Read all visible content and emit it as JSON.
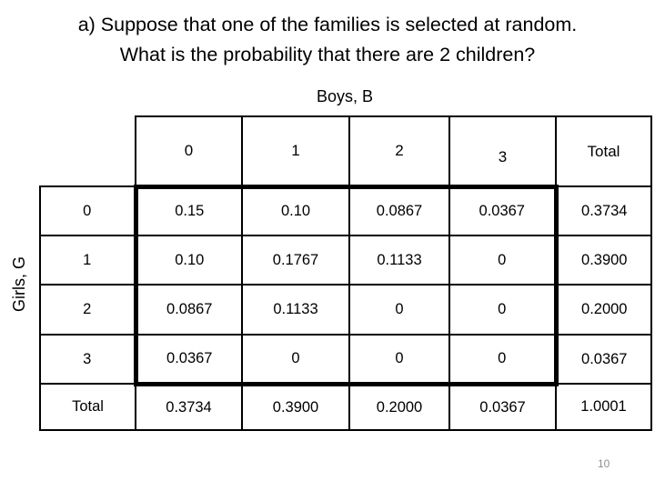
{
  "slide": {
    "title_line1": "a) Suppose that one of the families is selected at random.",
    "title_line2": "What is the probability that there are 2 children?",
    "page_number": "10"
  },
  "table": {
    "col_axis_label": "Boys, B",
    "row_axis_label": "Girls, G",
    "col_headers": [
      "0",
      "1",
      "2",
      "3",
      "Total"
    ],
    "rows": [
      {
        "label": "0",
        "cells": [
          "0.15",
          "0.10",
          "0.0867",
          "0.0367",
          "0.3734"
        ]
      },
      {
        "label": "1",
        "cells": [
          "0.10",
          "0.1767",
          "0.1133",
          "0",
          "0.3900"
        ]
      },
      {
        "label": "2",
        "cells": [
          "0.0867",
          "0.1133",
          "0",
          "0",
          "0.2000"
        ]
      },
      {
        "label": "3",
        "cells": [
          "0.0367",
          "0",
          "0",
          "0",
          "0.0367"
        ]
      },
      {
        "label": "Total",
        "cells": [
          "0.3734",
          "0.3900",
          "0.2000",
          "0.0367",
          "1.0001"
        ]
      }
    ]
  }
}
